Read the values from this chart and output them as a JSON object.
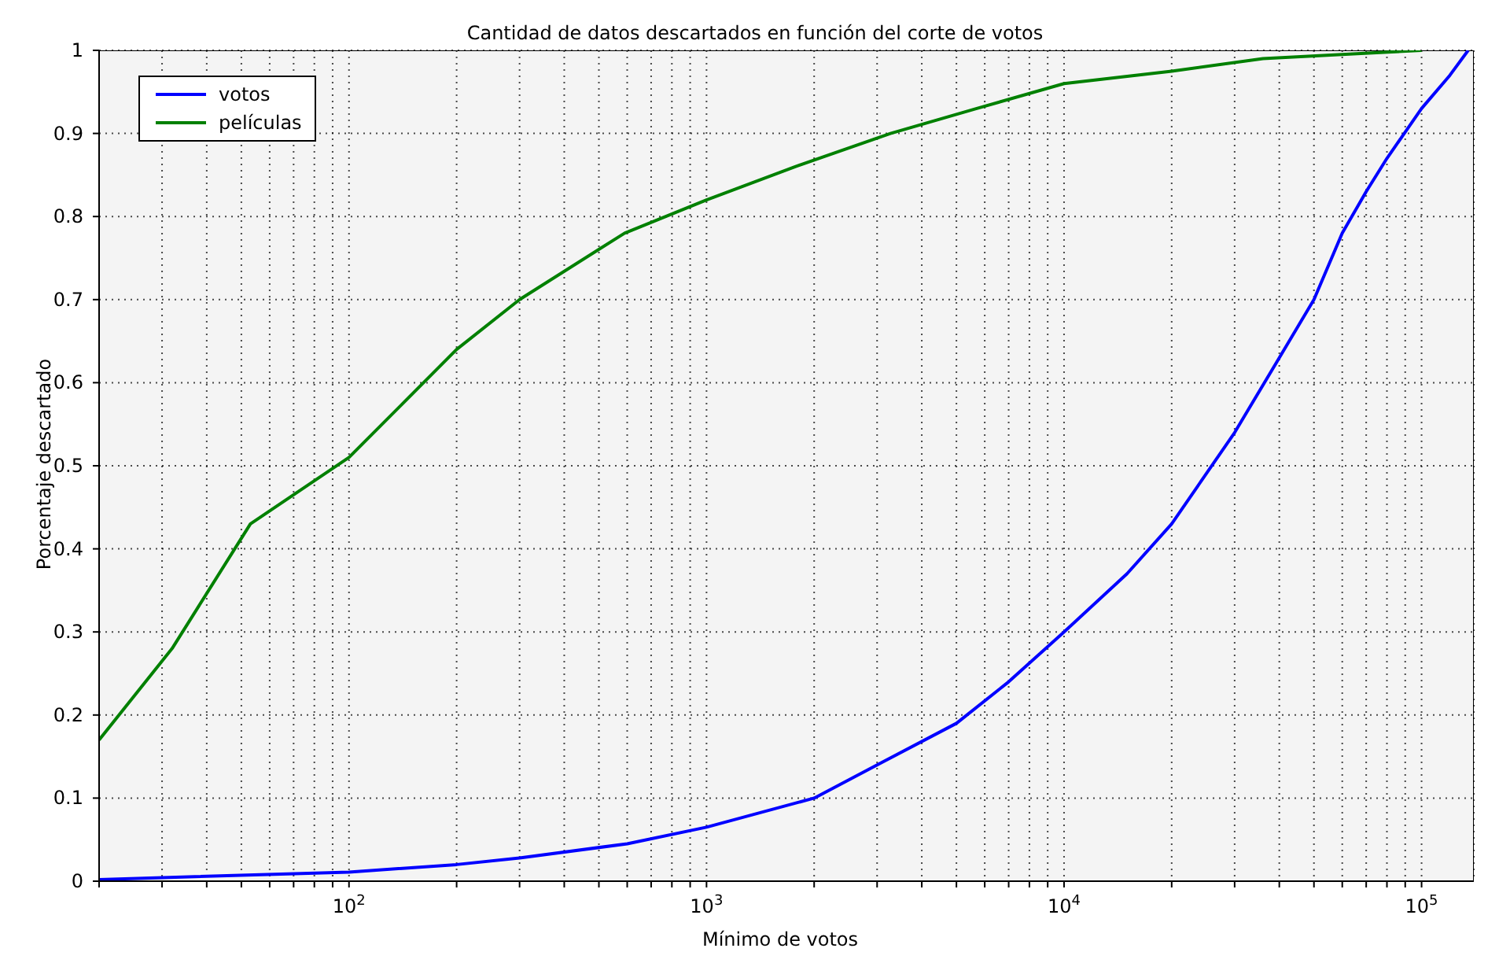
{
  "chart_data": {
    "type": "line",
    "title": "Cantidad de datos descartados en función del corte de votos",
    "xlabel": "Mínimo de votos",
    "ylabel": "Porcentaje descartado",
    "log": "x",
    "grid": true,
    "legend": "top left",
    "marker": "none",
    "line_style": "solid",
    "xlim": [
      20,
      140000
    ],
    "ylim": [
      0,
      1
    ],
    "xticks": [
      {
        "value": 20,
        "label": null
      },
      {
        "value": 30,
        "label": null
      },
      {
        "value": 40,
        "label": null
      },
      {
        "value": 50,
        "label": null
      },
      {
        "value": 60,
        "label": null
      },
      {
        "value": 70,
        "label": null
      },
      {
        "value": 80,
        "label": null
      },
      {
        "value": 90,
        "label": null
      },
      {
        "value": 100,
        "label": "10$^{2}$"
      },
      {
        "value": 200,
        "label": null
      },
      {
        "value": 300,
        "label": null
      },
      {
        "value": 400,
        "label": null
      },
      {
        "value": 500,
        "label": null
      },
      {
        "value": 600,
        "label": null
      },
      {
        "value": 700,
        "label": null
      },
      {
        "value": 800,
        "label": null
      },
      {
        "value": 900,
        "label": null
      },
      {
        "value": 1000,
        "label": "10$^{3}$"
      },
      {
        "value": 2000,
        "label": null
      },
      {
        "value": 3000,
        "label": null
      },
      {
        "value": 4000,
        "label": null
      },
      {
        "value": 5000,
        "label": null
      },
      {
        "value": 6000,
        "label": null
      },
      {
        "value": 7000,
        "label": null
      },
      {
        "value": 8000,
        "label": null
      },
      {
        "value": 9000,
        "label": null
      },
      {
        "value": 10000,
        "label": "10$^{4}$"
      },
      {
        "value": 20000,
        "label": null
      },
      {
        "value": 30000,
        "label": null
      },
      {
        "value": 40000,
        "label": null
      },
      {
        "value": 50000,
        "label": null
      },
      {
        "value": 60000,
        "label": null
      },
      {
        "value": 70000,
        "label": null
      },
      {
        "value": 80000,
        "label": null
      },
      {
        "value": 90000,
        "label": null
      },
      {
        "value": 100000,
        "label": "10$^{5}$"
      }
    ],
    "yticks": [
      0,
      0.1,
      0.2,
      0.3,
      0.4,
      0.5,
      0.6,
      0.7,
      0.8,
      0.9,
      1
    ],
    "series": [
      {
        "name": "votos",
        "color": "#0000ff",
        "x": [
          20,
          100,
          200,
          300,
          600,
          1000,
          2000,
          3000,
          5000,
          7000,
          10000,
          15000,
          20000,
          30000,
          40000,
          50000,
          60000,
          70000,
          80000,
          100000,
          120000,
          135000
        ],
        "values": [
          0.002,
          0.011,
          0.02,
          0.028,
          0.045,
          0.065,
          0.1,
          0.14,
          0.19,
          0.24,
          0.3,
          0.37,
          0.43,
          0.54,
          0.63,
          0.7,
          0.78,
          0.83,
          0.87,
          0.93,
          0.97,
          1.0
        ]
      },
      {
        "name": "películas",
        "color": "#008000",
        "x": [
          20,
          32,
          53,
          100,
          200,
          300,
          590,
          1000,
          1770,
          3270,
          5700,
          10000,
          20000,
          36000,
          66000,
          100000
        ],
        "values": [
          0.17,
          0.28,
          0.43,
          0.51,
          0.64,
          0.7,
          0.78,
          0.82,
          0.86,
          0.9,
          0.93,
          0.96,
          0.975,
          0.99,
          0.996,
          1.0
        ]
      }
    ]
  }
}
